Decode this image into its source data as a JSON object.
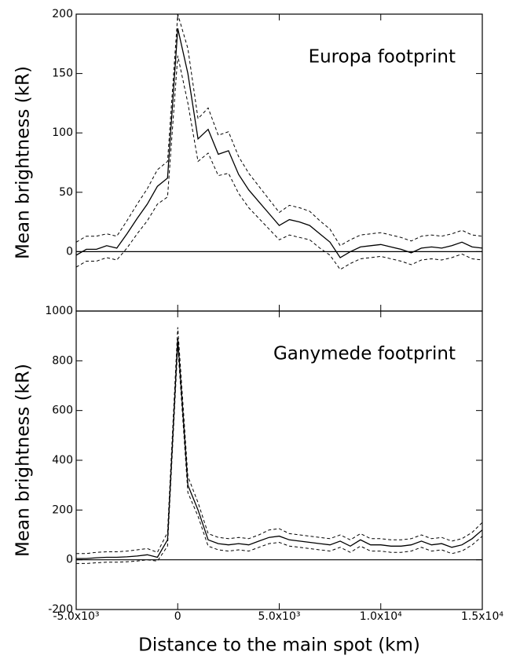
{
  "chart_data": [
    {
      "type": "line",
      "annotation": "Europa footprint",
      "y_label": "Mean brightness (kR)",
      "x": [
        -5000,
        -4500,
        -4000,
        -3500,
        -3000,
        -2500,
        -2000,
        -1500,
        -1000,
        -500,
        0,
        500,
        1000,
        1500,
        2000,
        2500,
        3000,
        3500,
        4000,
        4500,
        5000,
        5500,
        6000,
        6500,
        7000,
        7500,
        8000,
        8500,
        9000,
        9500,
        10000,
        10500,
        11000,
        11500,
        12000,
        12500,
        13000,
        13500,
        14000,
        14500,
        15000
      ],
      "series": [
        {
          "color": "#000000",
          "style": "solid",
          "values": [
            -3,
            2,
            2,
            5,
            3,
            15,
            28,
            40,
            55,
            62,
            188,
            150,
            95,
            103,
            82,
            85,
            65,
            52,
            42,
            32,
            22,
            27,
            25,
            22,
            15,
            8,
            -5,
            0,
            4,
            5,
            6,
            4,
            2,
            -1,
            3,
            4,
            3,
            5,
            8,
            4,
            3
          ]
        },
        {
          "color": "#000000",
          "style": "dashed",
          "values": [
            8,
            13,
            13,
            15,
            13,
            26,
            40,
            53,
            69,
            76,
            200,
            171,
            112,
            121,
            98,
            101,
            80,
            66,
            55,
            44,
            33,
            39,
            37,
            34,
            26,
            19,
            5,
            10,
            14,
            15,
            16,
            14,
            12,
            9,
            13,
            14,
            13,
            15,
            18,
            14,
            13
          ]
        },
        {
          "color": "#000000",
          "style": "dashed",
          "values": [
            -13,
            -8,
            -8,
            -5,
            -7,
            3,
            15,
            26,
            40,
            46,
            165,
            125,
            76,
            83,
            64,
            66,
            49,
            37,
            28,
            19,
            10,
            14,
            12,
            10,
            3,
            -3,
            -15,
            -10,
            -6,
            -5,
            -4,
            -6,
            -8,
            -11,
            -7,
            -6,
            -7,
            -5,
            -2,
            -6,
            -7
          ]
        }
      ],
      "xlim": [
        -5000,
        15000
      ],
      "xticks": [
        -5000,
        0,
        5000,
        10000,
        15000
      ],
      "ylim": [
        -50,
        200
      ],
      "yticks": [
        0,
        50,
        100,
        150,
        200
      ]
    },
    {
      "type": "line",
      "annotation": "Ganymede footprint",
      "y_label": "Mean brightness (kR)",
      "x_label": "Distance to the main spot (km)",
      "x": [
        -5000,
        -4500,
        -4000,
        -3500,
        -3000,
        -2500,
        -2000,
        -1500,
        -1000,
        -500,
        0,
        500,
        1000,
        1500,
        2000,
        2500,
        3000,
        3500,
        4000,
        4500,
        5000,
        5500,
        6000,
        6500,
        7000,
        7500,
        8000,
        8500,
        9000,
        9500,
        10000,
        10500,
        11000,
        11500,
        12000,
        12500,
        13000,
        13500,
        14000,
        14500,
        15000
      ],
      "series": [
        {
          "color": "#000000",
          "style": "solid",
          "values": [
            5,
            5,
            8,
            10,
            10,
            12,
            15,
            20,
            10,
            80,
            890,
            300,
            200,
            80,
            65,
            60,
            65,
            60,
            75,
            90,
            95,
            80,
            75,
            70,
            65,
            60,
            75,
            55,
            80,
            60,
            60,
            55,
            55,
            60,
            75,
            60,
            65,
            50,
            60,
            85,
            120
          ]
        },
        {
          "color": "#000000",
          "style": "dashed",
          "values": [
            25,
            25,
            30,
            32,
            32,
            35,
            40,
            45,
            30,
            110,
            935,
            335,
            230,
            105,
            90,
            85,
            90,
            85,
            100,
            120,
            125,
            105,
            100,
            95,
            90,
            85,
            100,
            80,
            105,
            85,
            85,
            80,
            80,
            85,
            100,
            85,
            90,
            75,
            85,
            110,
            150
          ]
        },
        {
          "color": "#000000",
          "style": "dashed",
          "values": [
            -15,
            -15,
            -12,
            -10,
            -10,
            -8,
            -5,
            0,
            -5,
            55,
            860,
            270,
            175,
            55,
            40,
            35,
            40,
            35,
            50,
            65,
            70,
            55,
            50,
            45,
            40,
            35,
            50,
            30,
            55,
            35,
            35,
            30,
            30,
            35,
            50,
            35,
            40,
            25,
            35,
            60,
            95
          ]
        }
      ],
      "xlim": [
        -5000,
        15000
      ],
      "xticks": [
        {
          "value": -5000,
          "label": "-5.0x10³"
        },
        0,
        {
          "value": 5000,
          "label": "5.0x10³"
        },
        {
          "value": 10000,
          "label": "1.0x10⁴"
        },
        {
          "value": 15000,
          "label": "1.5x10⁴"
        }
      ],
      "ylim": [
        -200,
        1000
      ],
      "yticks": [
        -200,
        0,
        200,
        400,
        600,
        800,
        1000
      ]
    }
  ]
}
